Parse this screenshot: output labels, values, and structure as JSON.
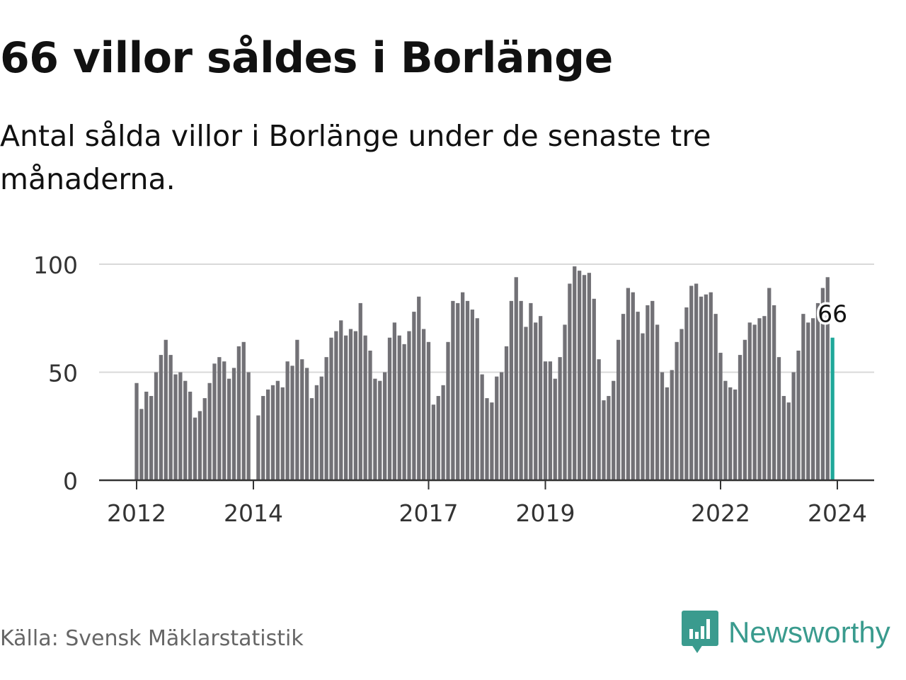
{
  "header": {
    "title": "66 villor såldes i Borlänge",
    "subtitle": "Antal sålda villor i Borlänge under de senaste tre månaderna."
  },
  "footer": {
    "source": "Källa: Svensk Mäklarstatistik",
    "brand": "Newsworthy"
  },
  "colors": {
    "bar": "#727176",
    "highlight": "#1fa89a",
    "grid": "#d9d9d9",
    "axis": "#333333",
    "brand": "#3a9b8e"
  },
  "chart_data": {
    "type": "bar",
    "title": "66 villor såldes i Borlänge",
    "xlabel": "",
    "ylabel": "",
    "ylim": [
      0,
      100
    ],
    "yticks": [
      "0",
      "50",
      "100"
    ],
    "xticks": [
      "2012",
      "2014",
      "2017",
      "2019",
      "2022",
      "2024"
    ],
    "start": "2012-01",
    "highlight_label": "66",
    "values": [
      45,
      33,
      41,
      39,
      50,
      58,
      65,
      58,
      49,
      50,
      46,
      41,
      29,
      32,
      38,
      45,
      54,
      57,
      55,
      47,
      52,
      62,
      64,
      50,
      null,
      30,
      39,
      42,
      44,
      46,
      43,
      55,
      53,
      65,
      56,
      52,
      38,
      44,
      48,
      57,
      66,
      69,
      74,
      67,
      70,
      69,
      82,
      67,
      60,
      47,
      46,
      50,
      66,
      73,
      67,
      63,
      69,
      78,
      85,
      70,
      64,
      35,
      39,
      44,
      64,
      83,
      82,
      87,
      83,
      79,
      75,
      49,
      38,
      36,
      48,
      50,
      62,
      83,
      94,
      83,
      71,
      82,
      73,
      76,
      55,
      55,
      47,
      57,
      72,
      91,
      99,
      97,
      95,
      96,
      84,
      56,
      37,
      39,
      46,
      65,
      77,
      89,
      87,
      78,
      68,
      81,
      83,
      72,
      50,
      43,
      51,
      64,
      70,
      80,
      90,
      91,
      85,
      86,
      87,
      77,
      59,
      46,
      43,
      42,
      58,
      65,
      73,
      72,
      75,
      76,
      89,
      81,
      57,
      39,
      36,
      50,
      60,
      77,
      73,
      75,
      82,
      89,
      94,
      66
    ]
  }
}
